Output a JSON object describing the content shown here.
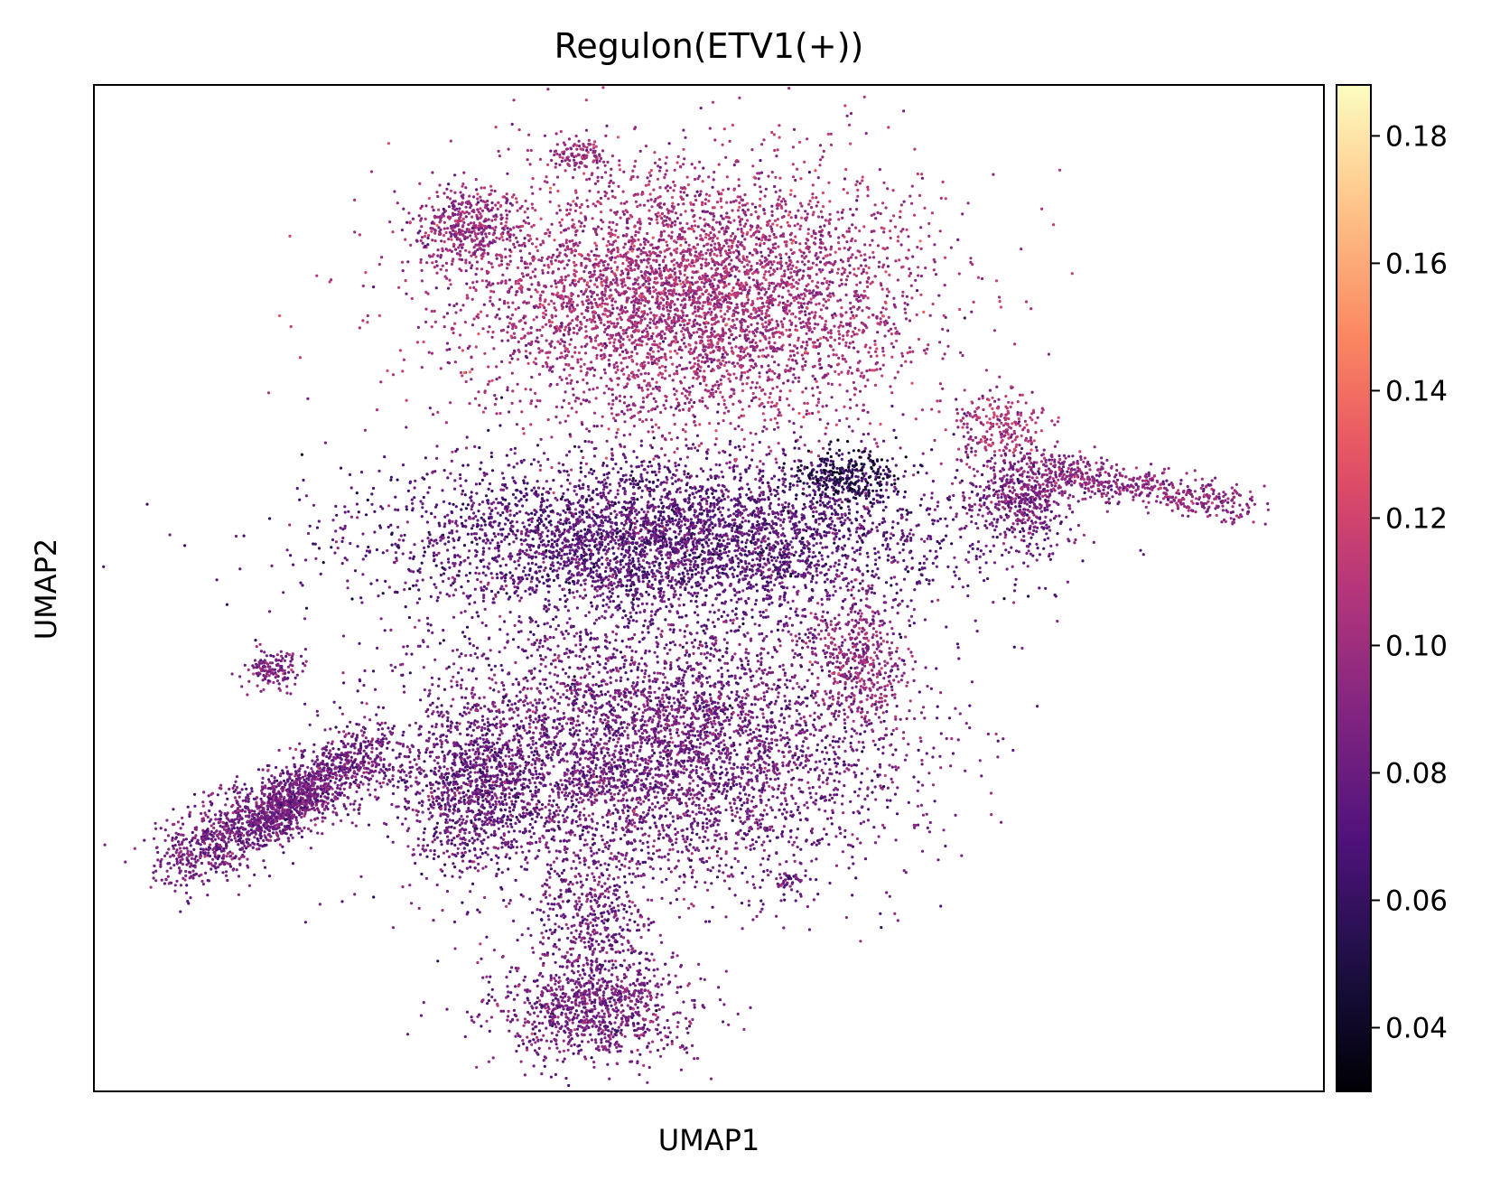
{
  "chart_data": {
    "type": "scatter",
    "title": "Regulon(ETV1(+))",
    "xlabel": "UMAP1",
    "ylabel": "UMAP2",
    "xlim": [
      0,
      100
    ],
    "ylim": [
      0,
      100
    ],
    "grid": false,
    "legend": "none",
    "colormap": "magma",
    "colorbar": {
      "vmin": 0.03,
      "vmax": 0.188,
      "ticks": [
        "0.04",
        "0.06",
        "0.08",
        "0.10",
        "0.12",
        "0.14",
        "0.16",
        "0.18"
      ]
    },
    "clusters": [
      {
        "id": "upper-main",
        "cx": 48.5,
        "cy": 79,
        "sx": 9.5,
        "sy": 6.5,
        "count": 4800,
        "value": 0.102
      },
      {
        "id": "upper-left-lobe",
        "cx": 30.5,
        "cy": 86,
        "sx": 2.2,
        "sy": 2.0,
        "count": 420,
        "value": 0.096
      },
      {
        "id": "upper-top-nub",
        "cx": 39.5,
        "cy": 93,
        "sx": 1.0,
        "sy": 0.8,
        "count": 110,
        "value": 0.098
      },
      {
        "id": "middle-band",
        "cx": 46.5,
        "cy": 55,
        "sx": 11.5,
        "sy": 4.0,
        "count": 4200,
        "value": 0.074
      },
      {
        "id": "lower-body",
        "cx": 45.5,
        "cy": 34,
        "sx": 10.0,
        "sy": 7.0,
        "count": 4600,
        "value": 0.082
      },
      {
        "id": "lower-left-lobe",
        "cx": 31.0,
        "cy": 30,
        "sx": 3.0,
        "sy": 4.0,
        "count": 900,
        "value": 0.078
      },
      {
        "id": "bottom-bulb",
        "cx": 40.5,
        "cy": 8.5,
        "sx": 4.0,
        "sy": 3.0,
        "count": 1000,
        "value": 0.085
      },
      {
        "id": "bottom-stem",
        "cx": 40.0,
        "cy": 17,
        "sx": 2.2,
        "sy": 3.5,
        "count": 350,
        "value": 0.082
      },
      {
        "id": "dark-small",
        "cx": 61.5,
        "cy": 61,
        "sx": 2.2,
        "sy": 1.3,
        "count": 300,
        "value": 0.052
      },
      {
        "id": "right-hook",
        "cx": 62.0,
        "cy": 43,
        "sx": 2.0,
        "sy": 3.5,
        "count": 420,
        "value": 0.097
      },
      {
        "id": "right-branch-blob",
        "cx": 75.5,
        "cy": 59,
        "sx": 2.2,
        "sy": 2.5,
        "count": 520,
        "value": 0.086
      },
      {
        "id": "right-branch-top",
        "cx": 73.5,
        "cy": 66,
        "sx": 2.0,
        "sy": 1.8,
        "count": 230,
        "value": 0.104
      },
      {
        "id": "left-small",
        "cx": 14.5,
        "cy": 42,
        "sx": 1.2,
        "sy": 1.0,
        "count": 140,
        "value": 0.088
      },
      {
        "id": "tiny-dot",
        "cx": 56.5,
        "cy": 21,
        "sx": 0.6,
        "sy": 0.4,
        "count": 40,
        "value": 0.082
      }
    ],
    "arms": [
      {
        "id": "left-arm",
        "from": [
          6.5,
          22.5
        ],
        "to": [
          23.0,
          34.0
        ],
        "spread": 1.7,
        "count": 1400,
        "value": 0.084
      },
      {
        "id": "left-arm-inner",
        "from": [
          13.0,
          26.0
        ],
        "to": [
          18.5,
          31.0
        ],
        "spread": 1.2,
        "count": 400,
        "value": 0.082
      },
      {
        "id": "right-branch-arm",
        "from": [
          77.0,
          62.0
        ],
        "to": [
          93.5,
          58.0
        ],
        "spread": 1.0,
        "count": 520,
        "value": 0.095
      }
    ]
  }
}
